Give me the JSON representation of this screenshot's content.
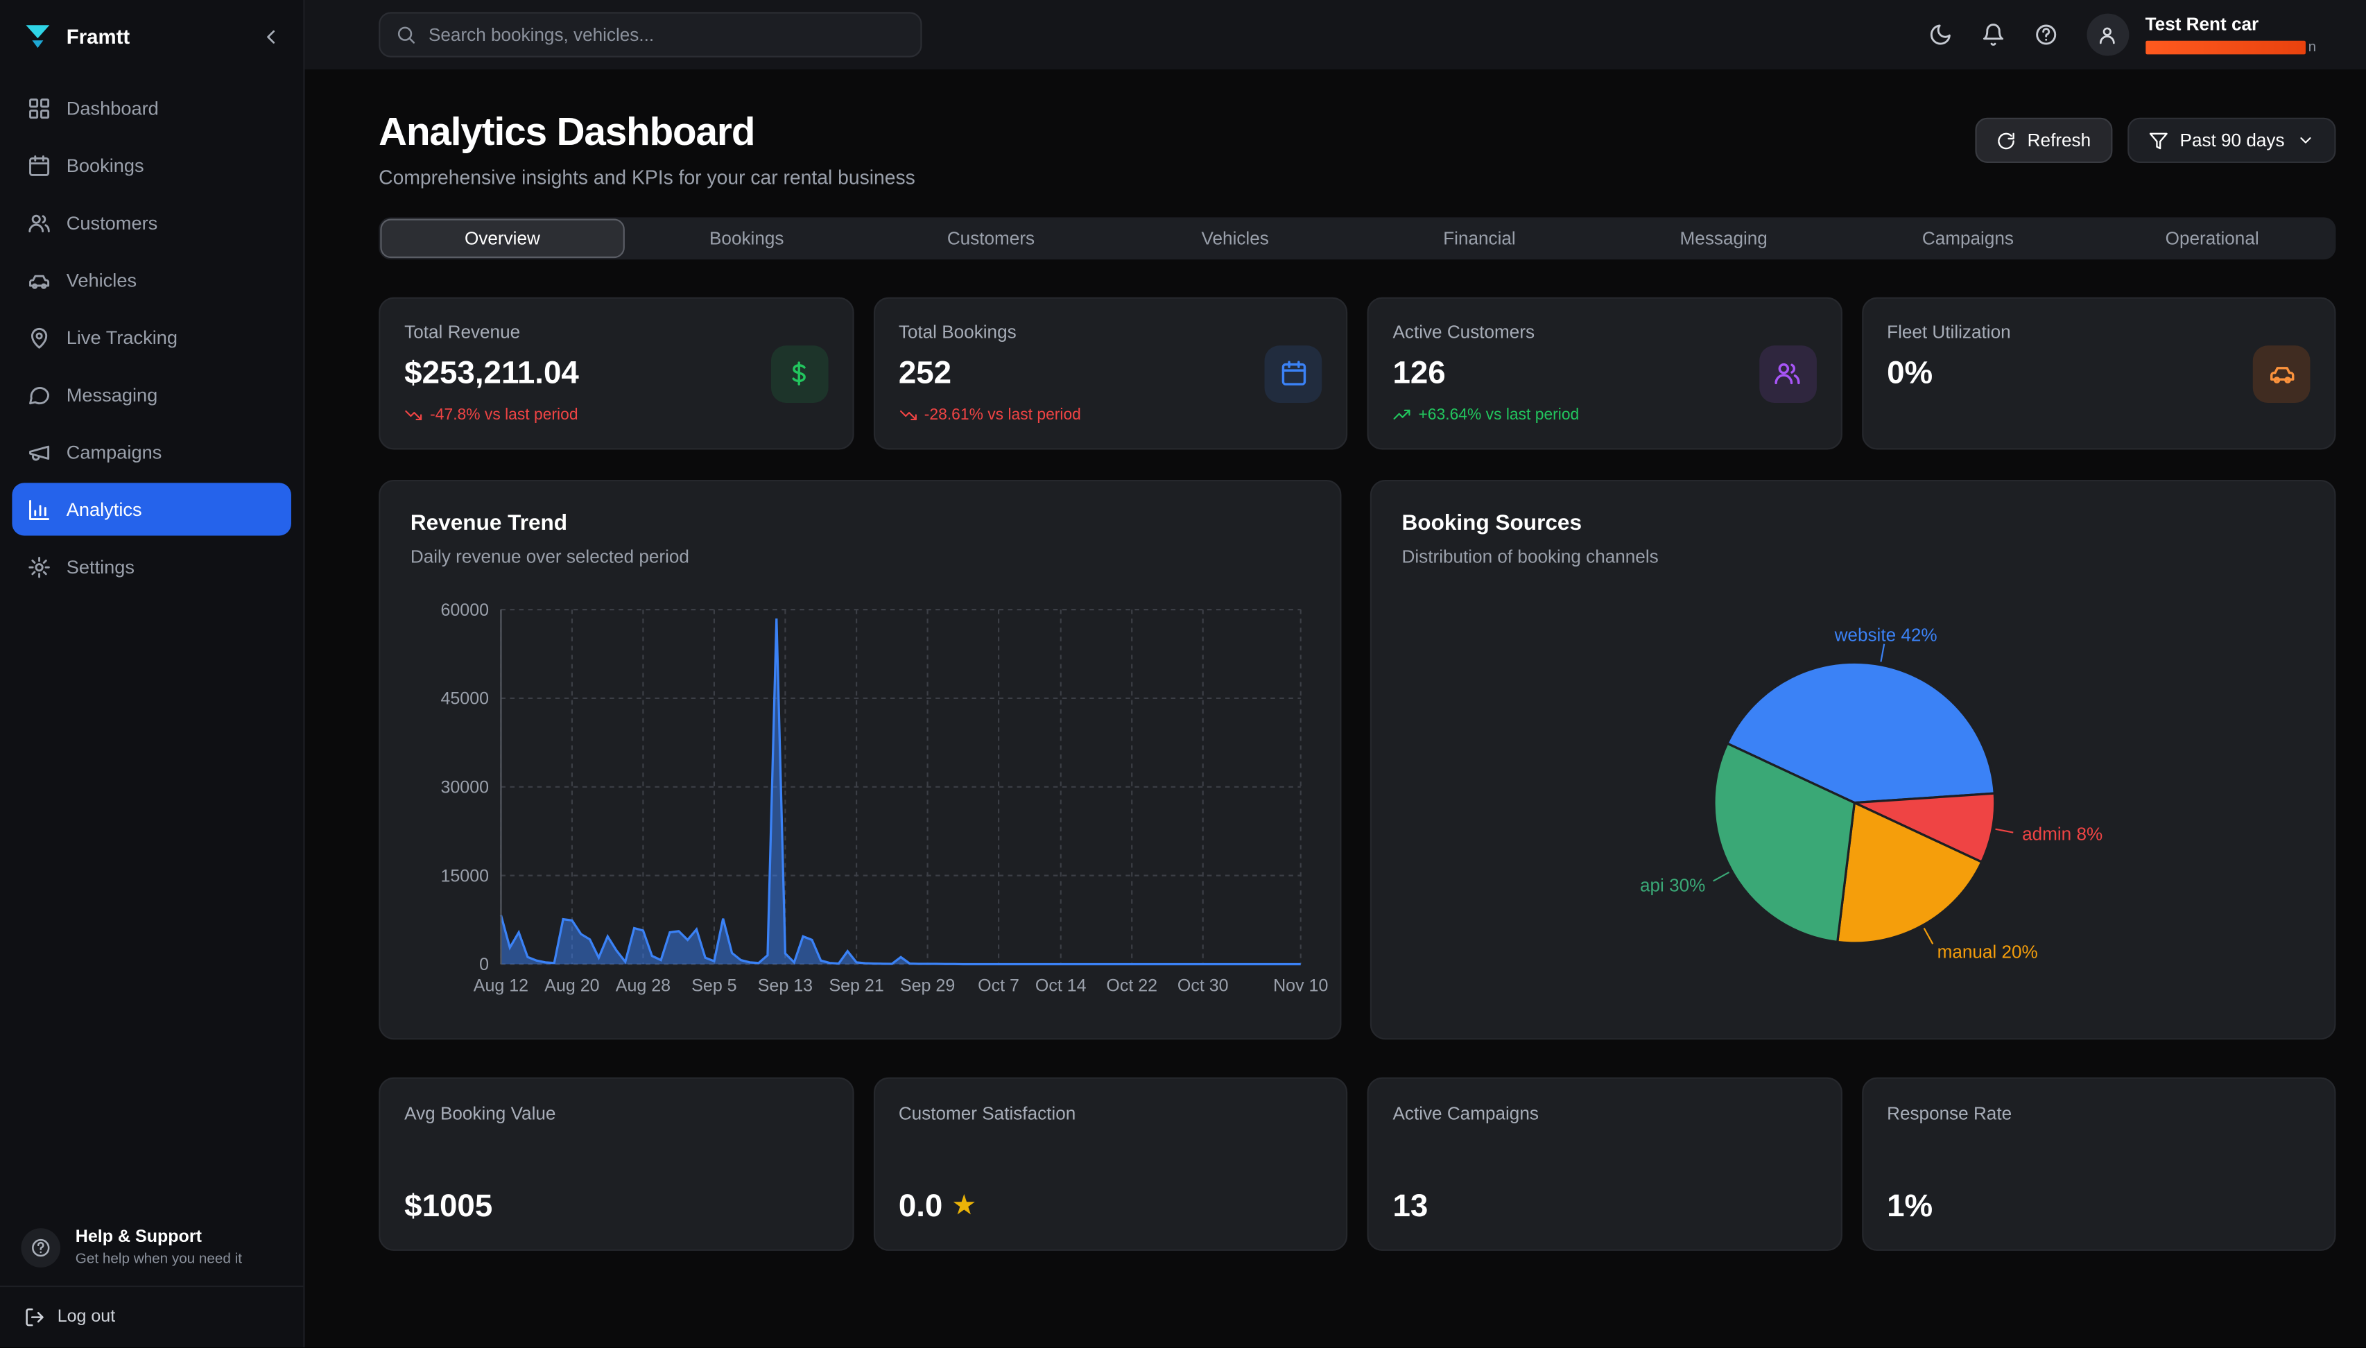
{
  "brand": {
    "name": "Framtt",
    "logo_colors": [
      "#2fd4e6",
      "#1fa8d4"
    ]
  },
  "sidebar": {
    "items": [
      {
        "label": "Dashboard",
        "icon": "grid",
        "active": false
      },
      {
        "label": "Bookings",
        "icon": "calendar",
        "active": false
      },
      {
        "label": "Customers",
        "icon": "users",
        "active": false
      },
      {
        "label": "Vehicles",
        "icon": "car",
        "active": false
      },
      {
        "label": "Live Tracking",
        "icon": "pin",
        "active": false
      },
      {
        "label": "Messaging",
        "icon": "chat",
        "active": false
      },
      {
        "label": "Campaigns",
        "icon": "megaphone",
        "active": false
      },
      {
        "label": "Analytics",
        "icon": "chart",
        "active": true
      },
      {
        "label": "Settings",
        "icon": "gear",
        "active": false
      }
    ],
    "active_color": "#2563eb",
    "help": {
      "title": "Help & Support",
      "subtitle": "Get help when you need it"
    },
    "logout": "Log out"
  },
  "topbar": {
    "search_placeholder": "Search bookings, vehicles...",
    "account_name": "Test Rent car",
    "account_sub": "n",
    "plan_bar_colors": [
      "#ff5a1f",
      "#e8420e"
    ]
  },
  "header": {
    "title": "Analytics Dashboard",
    "subtitle": "Comprehensive insights and KPIs for your car rental business",
    "refresh_label": "Refresh",
    "range_label": "Past 90 days"
  },
  "tabs": [
    "Overview",
    "Bookings",
    "Customers",
    "Vehicles",
    "Financial",
    "Messaging",
    "Campaigns",
    "Operational"
  ],
  "active_tab": "Overview",
  "kpis": [
    {
      "label": "Total Revenue",
      "value": "$253,211.04",
      "delta": "-47.8% vs last period",
      "trend": "down",
      "icon": "dollar",
      "color": "#22c55e",
      "tint": "rgba(34,197,94,0.13)"
    },
    {
      "label": "Total Bookings",
      "value": "252",
      "delta": "-28.61% vs last period",
      "trend": "down",
      "icon": "calendar",
      "color": "#3b82f6",
      "tint": "rgba(59,130,246,0.13)"
    },
    {
      "label": "Active Customers",
      "value": "126",
      "delta": "+63.64% vs last period",
      "trend": "up",
      "icon": "users",
      "color": "#a855f7",
      "tint": "rgba(168,85,247,0.13)"
    },
    {
      "label": "Fleet Utilization",
      "value": "0%",
      "delta": "",
      "trend": "",
      "icon": "car",
      "color": "#fb923c",
      "tint": "rgba(249,115,22,0.16)"
    }
  ],
  "bottom_kpis": [
    {
      "label": "Avg Booking Value",
      "value": "$1005",
      "icon": ""
    },
    {
      "label": "Customer Satisfaction",
      "value": "0.0",
      "icon": "star"
    },
    {
      "label": "Active Campaigns",
      "value": "13",
      "icon": ""
    },
    {
      "label": "Response Rate",
      "value": "1%",
      "icon": ""
    }
  ],
  "chart_data": [
    {
      "type": "area",
      "title": "Revenue Trend",
      "subtitle": "Daily revenue over selected period",
      "xlabel": "",
      "ylabel": "",
      "ylim": [
        0,
        60000
      ],
      "yticks": [
        0,
        15000,
        30000,
        45000,
        60000
      ],
      "grid": true,
      "line_color": "#3b82f6",
      "fill_color": "rgba(59,130,246,0.5)",
      "xtick_labels": [
        "Aug 12",
        "Aug 20",
        "Aug 28",
        "Sep 5",
        "Sep 13",
        "Sep 21",
        "Sep 29",
        "Oct 7",
        "Oct 14",
        "Oct 22",
        "Oct 30",
        "Nov 10"
      ],
      "xtick_indices": [
        0,
        8,
        16,
        24,
        32,
        40,
        48,
        56,
        63,
        71,
        79,
        90
      ],
      "values": [
        8300,
        2800,
        5400,
        1200,
        600,
        300,
        200,
        7600,
        7400,
        5100,
        4200,
        1100,
        4700,
        2300,
        400,
        6100,
        5700,
        1400,
        700,
        5400,
        5600,
        4100,
        5900,
        1100,
        500,
        7700,
        1900,
        700,
        300,
        200,
        1500,
        58500,
        1800,
        300,
        4700,
        4100,
        600,
        200,
        100,
        2200,
        300,
        150,
        100,
        80,
        60,
        1200,
        100,
        60,
        50,
        40,
        30,
        20,
        10,
        10,
        10,
        10,
        10,
        10,
        10,
        10,
        10,
        10,
        10,
        10,
        10,
        10,
        10,
        10,
        10,
        10,
        10,
        10,
        10,
        10,
        10,
        10,
        10,
        10,
        10,
        10,
        10,
        10,
        10,
        10,
        10,
        10,
        10,
        10,
        10,
        10,
        0
      ]
    },
    {
      "type": "pie",
      "title": "Booking Sources",
      "subtitle": "Distribution of booking channels",
      "start_angle": -65,
      "slices": [
        {
          "label": "website",
          "pct": 42,
          "color": "#3b82f6"
        },
        {
          "label": "admin",
          "pct": 8,
          "color": "#ef4444"
        },
        {
          "label": "manual",
          "pct": 20,
          "color": "#f59e0b"
        },
        {
          "label": "api",
          "pct": 30,
          "color": "#3aa876"
        }
      ]
    }
  ]
}
